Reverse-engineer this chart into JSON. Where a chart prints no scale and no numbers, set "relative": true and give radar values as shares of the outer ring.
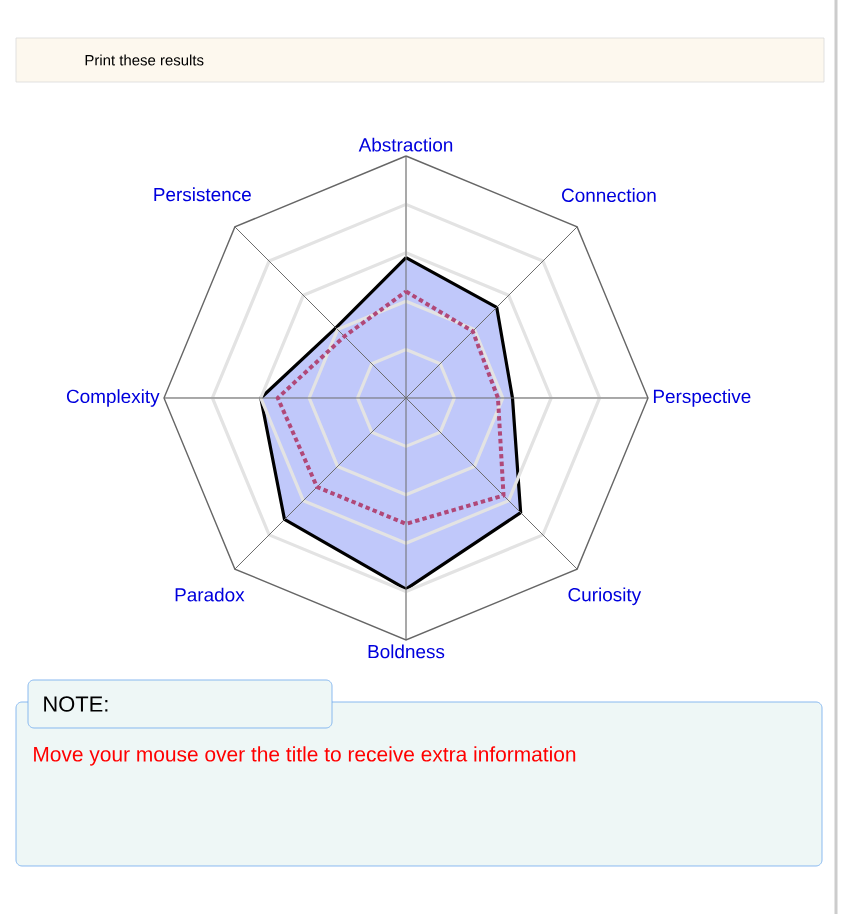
{
  "chart_data": {
    "type": "radar",
    "relative": true,
    "grid": true,
    "categories": [
      "Abstraction",
      "Connection",
      "Perspective",
      "Curiosity",
      "Boldness",
      "Paradox",
      "Complexity",
      "Persistence"
    ],
    "series": [
      {
        "line_style": "solid",
        "color": "#c0c8fa",
        "values": [
          0.58,
          0.53,
          0.44,
          0.67,
          0.79,
          0.71,
          0.6,
          0.41
        ]
      },
      {
        "line_style": "dotted",
        "color": "#b04878",
        "values": [
          0.44,
          0.39,
          0.38,
          0.57,
          0.52,
          0.52,
          0.53,
          0.36
        ]
      }
    ],
    "annotations": [
      "Print these results",
      "NOTE:",
      "Move your mouse over the title to receive extra information"
    ]
  }
}
